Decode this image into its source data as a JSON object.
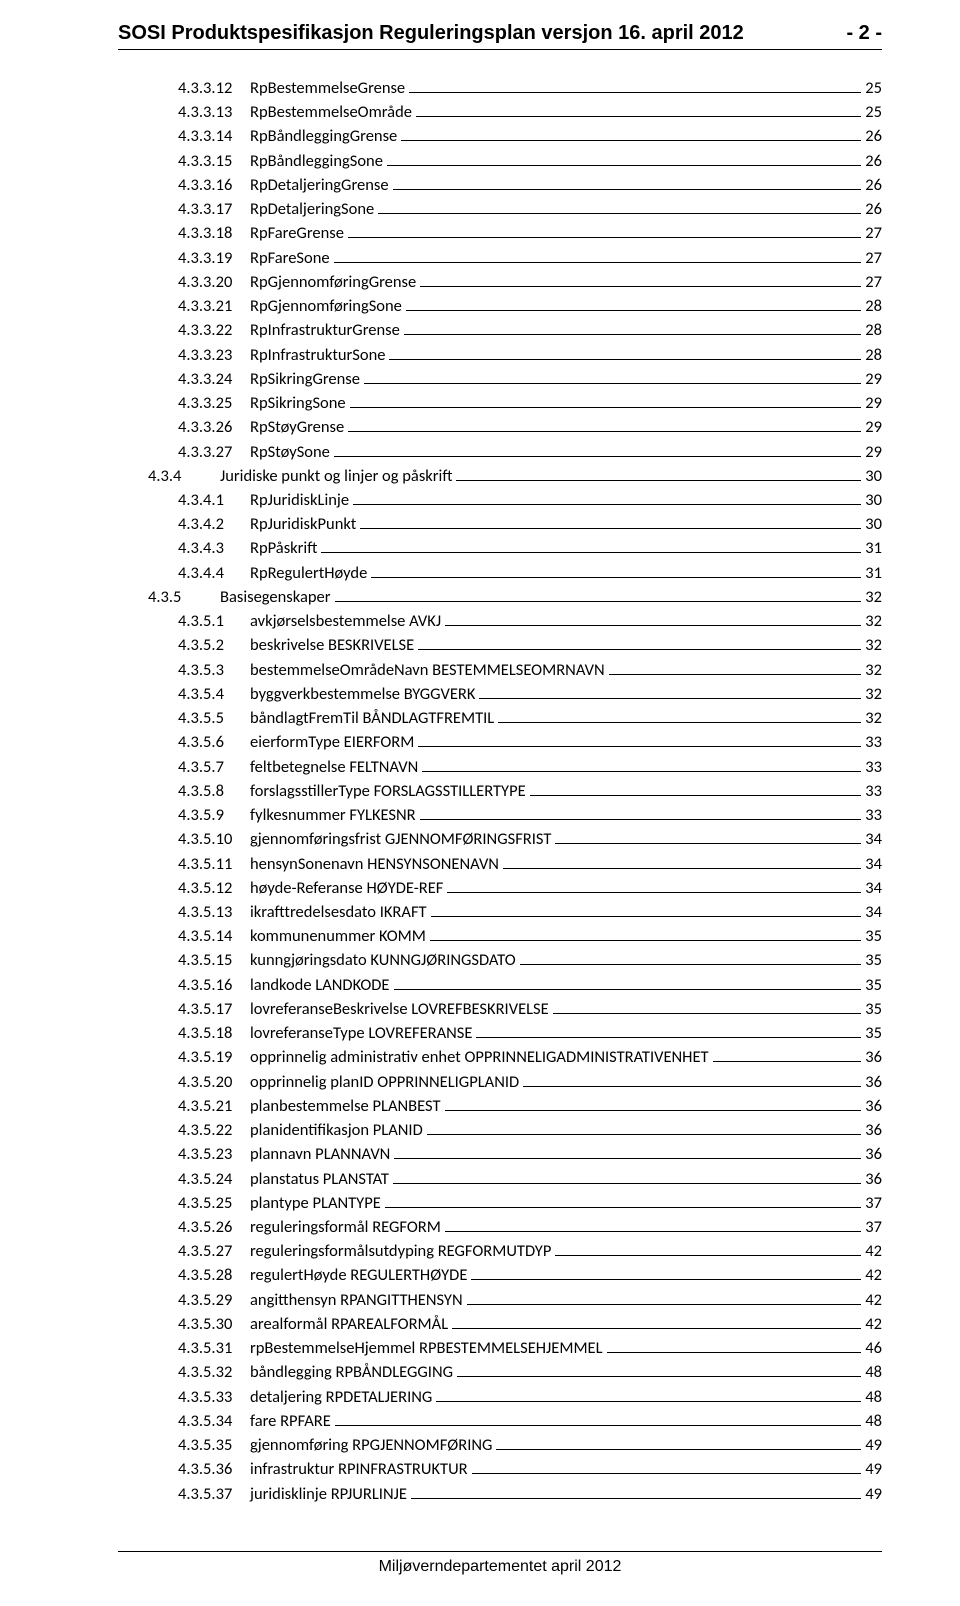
{
  "header": {
    "title": "SOSI Produktspesifikasjon Reguleringsplan versjon 16. april 2012",
    "page_indicator": "- 2 -"
  },
  "footer": {
    "text": "Miljøverndepartementet april 2012"
  },
  "toc": [
    {
      "level": 3,
      "num": "4.3.3.12",
      "label": "RpBestemmelseGrense",
      "page": "25"
    },
    {
      "level": 3,
      "num": "4.3.3.13",
      "label": "RpBestemmelseOmråde",
      "page": "25"
    },
    {
      "level": 3,
      "num": "4.3.3.14",
      "label": "RpBåndleggingGrense",
      "page": "26"
    },
    {
      "level": 3,
      "num": "4.3.3.15",
      "label": "RpBåndleggingSone",
      "page": "26"
    },
    {
      "level": 3,
      "num": "4.3.3.16",
      "label": "RpDetaljeringGrense",
      "page": "26"
    },
    {
      "level": 3,
      "num": "4.3.3.17",
      "label": "RpDetaljeringSone",
      "page": "26"
    },
    {
      "level": 3,
      "num": "4.3.3.18",
      "label": "RpFareGrense",
      "page": "27"
    },
    {
      "level": 3,
      "num": "4.3.3.19",
      "label": "RpFareSone",
      "page": "27"
    },
    {
      "level": 3,
      "num": "4.3.3.20",
      "label": "RpGjennomføringGrense",
      "page": "27"
    },
    {
      "level": 3,
      "num": "4.3.3.21",
      "label": "RpGjennomføringSone",
      "page": "28"
    },
    {
      "level": 3,
      "num": "4.3.3.22",
      "label": "RpInfrastrukturGrense",
      "page": "28"
    },
    {
      "level": 3,
      "num": "4.3.3.23",
      "label": "RpInfrastrukturSone",
      "page": "28"
    },
    {
      "level": 3,
      "num": "4.3.3.24",
      "label": "RpSikringGrense",
      "page": "29"
    },
    {
      "level": 3,
      "num": "4.3.3.25",
      "label": "RpSikringSone",
      "page": "29"
    },
    {
      "level": 3,
      "num": "4.3.3.26",
      "label": "RpStøyGrense",
      "page": "29"
    },
    {
      "level": 3,
      "num": "4.3.3.27",
      "label": "RpStøySone",
      "page": "29"
    },
    {
      "level": 2,
      "num": "4.3.4",
      "label": "Juridiske punkt og linjer og påskrift",
      "page": "30"
    },
    {
      "level": 3,
      "num": "4.3.4.1",
      "label": "RpJuridiskLinje",
      "page": "30"
    },
    {
      "level": 3,
      "num": "4.3.4.2",
      "label": "RpJuridiskPunkt",
      "page": "30"
    },
    {
      "level": 3,
      "num": "4.3.4.3",
      "label": "RpPåskrift",
      "page": "31"
    },
    {
      "level": 3,
      "num": "4.3.4.4",
      "label": "RpRegulertHøyde",
      "page": "31"
    },
    {
      "level": 2,
      "num": "4.3.5",
      "label": "Basisegenskaper",
      "page": "32"
    },
    {
      "level": 3,
      "num": "4.3.5.1",
      "label": "avkjørselsbestemmelse AVKJ",
      "page": "32"
    },
    {
      "level": 3,
      "num": "4.3.5.2",
      "label": "beskrivelse BESKRIVELSE",
      "page": "32"
    },
    {
      "level": 3,
      "num": "4.3.5.3",
      "label": "bestemmelseOmrådeNavn BESTEMMELSEOMRNAVN",
      "page": "32"
    },
    {
      "level": 3,
      "num": "4.3.5.4",
      "label": "byggverkbestemmelse BYGGVERK",
      "page": "32"
    },
    {
      "level": 3,
      "num": "4.3.5.5",
      "label": "båndlagtFremTil BÅNDLAGTFREMTIL",
      "page": "32"
    },
    {
      "level": 3,
      "num": "4.3.5.6",
      "label": "eierformType EIERFORM",
      "page": "33"
    },
    {
      "level": 3,
      "num": "4.3.5.7",
      "label": "feltbetegnelse FELTNAVN",
      "page": "33"
    },
    {
      "level": 3,
      "num": "4.3.5.8",
      "label": "forslagsstillerType FORSLAGSSTILLERTYPE",
      "page": "33"
    },
    {
      "level": 3,
      "num": "4.3.5.9",
      "label": "fylkesnummer FYLKESNR",
      "page": "33"
    },
    {
      "level": 3,
      "num": "4.3.5.10",
      "label": "gjennomføringsfrist GJENNOMFØRINGSFRIST",
      "page": "34"
    },
    {
      "level": 3,
      "num": "4.3.5.11",
      "label": "hensynSonenavn HENSYNSONENAVN",
      "page": "34"
    },
    {
      "level": 3,
      "num": "4.3.5.12",
      "label": "høyde-Referanse HØYDE-REF",
      "page": "34"
    },
    {
      "level": 3,
      "num": "4.3.5.13",
      "label": "ikrafttredelsesdato IKRAFT",
      "page": "34"
    },
    {
      "level": 3,
      "num": "4.3.5.14",
      "label": "kommunenummer KOMM",
      "page": "35"
    },
    {
      "level": 3,
      "num": "4.3.5.15",
      "label": "kunngjøringsdato KUNNGJØRINGSDATO",
      "page": "35"
    },
    {
      "level": 3,
      "num": "4.3.5.16",
      "label": "landkode LANDKODE",
      "page": "35"
    },
    {
      "level": 3,
      "num": "4.3.5.17",
      "label": "lovreferanseBeskrivelse LOVREFBESKRIVELSE",
      "page": "35"
    },
    {
      "level": 3,
      "num": "4.3.5.18",
      "label": "lovreferanseType LOVREFERANSE",
      "page": "35"
    },
    {
      "level": 3,
      "num": "4.3.5.19",
      "label": "opprinnelig administrativ enhet OPPRINNELIGADMINISTRATIVENHET",
      "page": "36"
    },
    {
      "level": 3,
      "num": "4.3.5.20",
      "label": "opprinnelig planID OPPRINNELIGPLANID",
      "page": "36"
    },
    {
      "level": 3,
      "num": "4.3.5.21",
      "label": "planbestemmelse PLANBEST",
      "page": "36"
    },
    {
      "level": 3,
      "num": "4.3.5.22",
      "label": "planidentifikasjon PLANID",
      "page": "36"
    },
    {
      "level": 3,
      "num": "4.3.5.23",
      "label": "plannavn PLANNAVN",
      "page": "36"
    },
    {
      "level": 3,
      "num": "4.3.5.24",
      "label": "planstatus PLANSTAT",
      "page": "36"
    },
    {
      "level": 3,
      "num": "4.3.5.25",
      "label": "plantype PLANTYPE",
      "page": "37"
    },
    {
      "level": 3,
      "num": "4.3.5.26",
      "label": "reguleringsformål REGFORM",
      "page": "37"
    },
    {
      "level": 3,
      "num": "4.3.5.27",
      "label": "reguleringsformålsutdyping REGFORMUTDYP",
      "page": "42"
    },
    {
      "level": 3,
      "num": "4.3.5.28",
      "label": "regulertHøyde REGULERTHØYDE",
      "page": "42"
    },
    {
      "level": 3,
      "num": "4.3.5.29",
      "label": "angitthensyn RPANGITTHENSYN",
      "page": "42"
    },
    {
      "level": 3,
      "num": "4.3.5.30",
      "label": "arealformål RPAREALFORMÅL",
      "page": "42"
    },
    {
      "level": 3,
      "num": "4.3.5.31",
      "label": "rpBestemmelseHjemmel RPBESTEMMELSEHJEMMEL",
      "page": "46"
    },
    {
      "level": 3,
      "num": "4.3.5.32",
      "label": "båndlegging RPBÅNDLEGGING",
      "page": "48"
    },
    {
      "level": 3,
      "num": "4.3.5.33",
      "label": "detaljering RPDETALJERING",
      "page": "48"
    },
    {
      "level": 3,
      "num": "4.3.5.34",
      "label": "fare RPFARE",
      "page": "48"
    },
    {
      "level": 3,
      "num": "4.3.5.35",
      "label": "gjennomføring RPGJENNOMFØRING",
      "page": "49"
    },
    {
      "level": 3,
      "num": "4.3.5.36",
      "label": "infrastruktur RPINFRASTRUKTUR",
      "page": "49"
    },
    {
      "level": 3,
      "num": "4.3.5.37",
      "label": "juridisklinje RPJURLINJE",
      "page": "49"
    }
  ]
}
